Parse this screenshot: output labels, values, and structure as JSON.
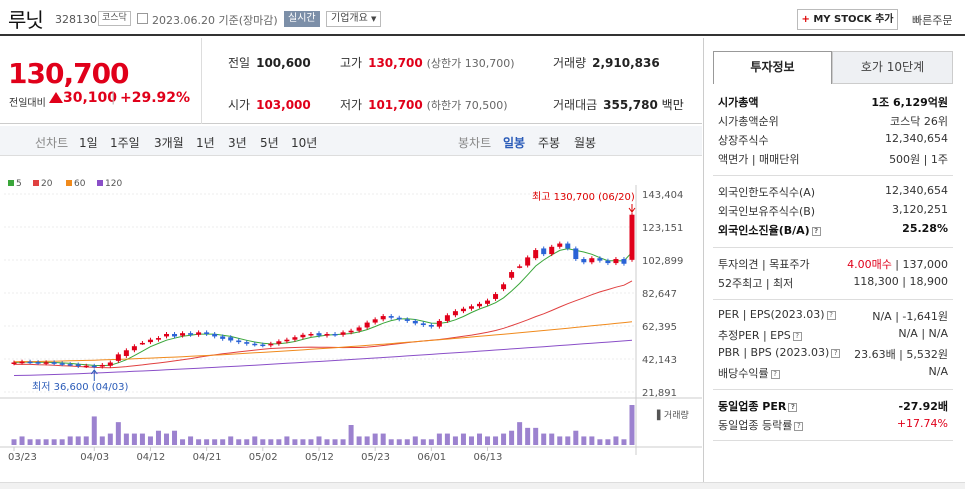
{
  "header": {
    "name": "루닛",
    "code": "328130",
    "market": "코스닥",
    "date": "2023.06.20 기준(장마감)",
    "realtime": "실시간",
    "overview": "기업개요",
    "mystock": "MY STOCK 추가",
    "quick_order": "빠른주문"
  },
  "price": {
    "current": "130,700",
    "change_label": "전일대비",
    "change": "30,100",
    "pct": "+29.92%"
  },
  "stats": {
    "prev": {
      "k": "전일",
      "v": "100,600"
    },
    "high": {
      "k": "고가",
      "v": "130,700",
      "s": "(상한가 130,700)"
    },
    "volume": {
      "k": "거래량",
      "v": "2,910,836"
    },
    "open": {
      "k": "시가",
      "v": "103,000"
    },
    "low": {
      "k": "저가",
      "v": "101,700",
      "s": "(하한가 70,500)"
    },
    "amount": {
      "k": "거래대금",
      "v": "355,780",
      "u": "백만"
    }
  },
  "chart_tabs": {
    "line": "선차트",
    "periods": [
      "1일",
      "1주일",
      "3개월",
      "1년",
      "3년",
      "5년",
      "10년"
    ],
    "candle": "봉차트",
    "candles": [
      "일봉",
      "주봉",
      "월봉"
    ]
  },
  "ma_legend": [
    {
      "label": "5",
      "color": "#3aa63a"
    },
    {
      "label": "20",
      "color": "#e04040"
    },
    {
      "label": "60",
      "color": "#f08a1c"
    },
    {
      "label": "120",
      "color": "#8a4fc8"
    }
  ],
  "chart_data": {
    "type": "candlestick",
    "y_ticks": [
      "143,404",
      "123,151",
      "102,899",
      "82,647",
      "62,395",
      "42,143",
      "21,891"
    ],
    "ylim": [
      21891,
      143404
    ],
    "x_ticks": [
      "03/23",
      "04/03",
      "04/12",
      "04/21",
      "05/02",
      "05/12",
      "05/23",
      "06/01",
      "06/13"
    ],
    "high_note": "최고 130,700 (06/20)",
    "low_note": "최저 36,600 (04/03)",
    "volume_label": "거래량",
    "close": [
      40000,
      40500,
      40200,
      39800,
      40100,
      39500,
      39000,
      38800,
      37800,
      38000,
      37500,
      38500,
      40000,
      45000,
      47500,
      50000,
      52000,
      54000,
      55000,
      57500,
      56000,
      58000,
      57000,
      58500,
      57500,
      56000,
      54500,
      53500,
      52500,
      51500,
      51000,
      50500,
      51500,
      53000,
      54000,
      55500,
      57000,
      57500,
      56500,
      57500,
      57000,
      58500,
      59500,
      61500,
      64500,
      66500,
      68500,
      67500,
      66500,
      65500,
      64000,
      63000,
      62000,
      65500,
      69000,
      71500,
      73000,
      74500,
      76000,
      78000,
      82000,
      88000,
      95500,
      99000,
      104500,
      109000,
      106500,
      111000,
      113000,
      110000,
      103500,
      101500,
      104000,
      102500,
      101000,
      103500,
      100600,
      130700
    ],
    "open": [
      39500,
      40000,
      40500,
      40200,
      39500,
      40100,
      39500,
      39000,
      38800,
      37800,
      38000,
      37500,
      38000,
      41000,
      44000,
      47500,
      52000,
      52500,
      54000,
      56000,
      57500,
      56500,
      58000,
      57000,
      58500,
      57500,
      56000,
      55500,
      53500,
      52500,
      51500,
      51000,
      50500,
      51500,
      53000,
      54000,
      55500,
      57000,
      58000,
      56500,
      57500,
      57000,
      58500,
      59500,
      61500,
      64500,
      66500,
      68500,
      67500,
      66500,
      65500,
      64000,
      63000,
      62000,
      65500,
      69000,
      71500,
      73000,
      74500,
      76000,
      79000,
      85000,
      92000,
      99000,
      99500,
      104000,
      110000,
      106500,
      111000,
      113000,
      110000,
      103500,
      101500,
      104000,
      102500,
      101000,
      103500,
      103000
    ],
    "volume": [
      2,
      3,
      2,
      2,
      2,
      2,
      2,
      3,
      3,
      3,
      10,
      3,
      4,
      8,
      4,
      4,
      4,
      3,
      5,
      4,
      5,
      2,
      3,
      2,
      2,
      2,
      2,
      3,
      2,
      2,
      3,
      2,
      2,
      2,
      3,
      2,
      2,
      2,
      3,
      2,
      2,
      2,
      7,
      3,
      3,
      4,
      4,
      2,
      2,
      2,
      3,
      2,
      2,
      4,
      4,
      3,
      4,
      3,
      4,
      3,
      3,
      4,
      5,
      8,
      6,
      6,
      4,
      4,
      3,
      3,
      5,
      3,
      3,
      2,
      2,
      3,
      2,
      14
    ]
  },
  "right": {
    "tabs": [
      "투자정보",
      "호가 10단계"
    ],
    "rows": [
      {
        "l": "시가총액",
        "v": "1조 6,129억원",
        "bold": true
      },
      {
        "l": "시가총액순위",
        "v": "코스닥 26위"
      },
      {
        "l": "상장주식수",
        "v": "12,340,654"
      },
      {
        "l": "액면가 | 매매단위",
        "v": "500원 | 1주"
      },
      {
        "l": "외국인한도주식수(A)",
        "v": "12,340,654"
      },
      {
        "l": "외국인보유주식수(B)",
        "v": "3,120,251"
      },
      {
        "l": "외국인소진율(B/A)",
        "v": "25.28%",
        "bold": true
      },
      {
        "l": "투자의견 | 목표주가",
        "v": "4.00매수 | 137,000"
      },
      {
        "l": "52주최고 | 최저",
        "v": "118,300 | 18,900"
      },
      {
        "l": "PER | EPS(2023.03)",
        "v": "N/A | -1,641원"
      },
      {
        "l": "추정PER | EPS",
        "v": "N/A | N/A"
      },
      {
        "l": "PBR | BPS (2023.03)",
        "v": "23.63배 | 5,532원"
      },
      {
        "l": "배당수익률",
        "v": "N/A"
      },
      {
        "l": "동일업종 PER",
        "v": "-27.92배",
        "bold": true
      },
      {
        "l": "동일업종 등락률",
        "v": "+17.74%"
      }
    ]
  }
}
